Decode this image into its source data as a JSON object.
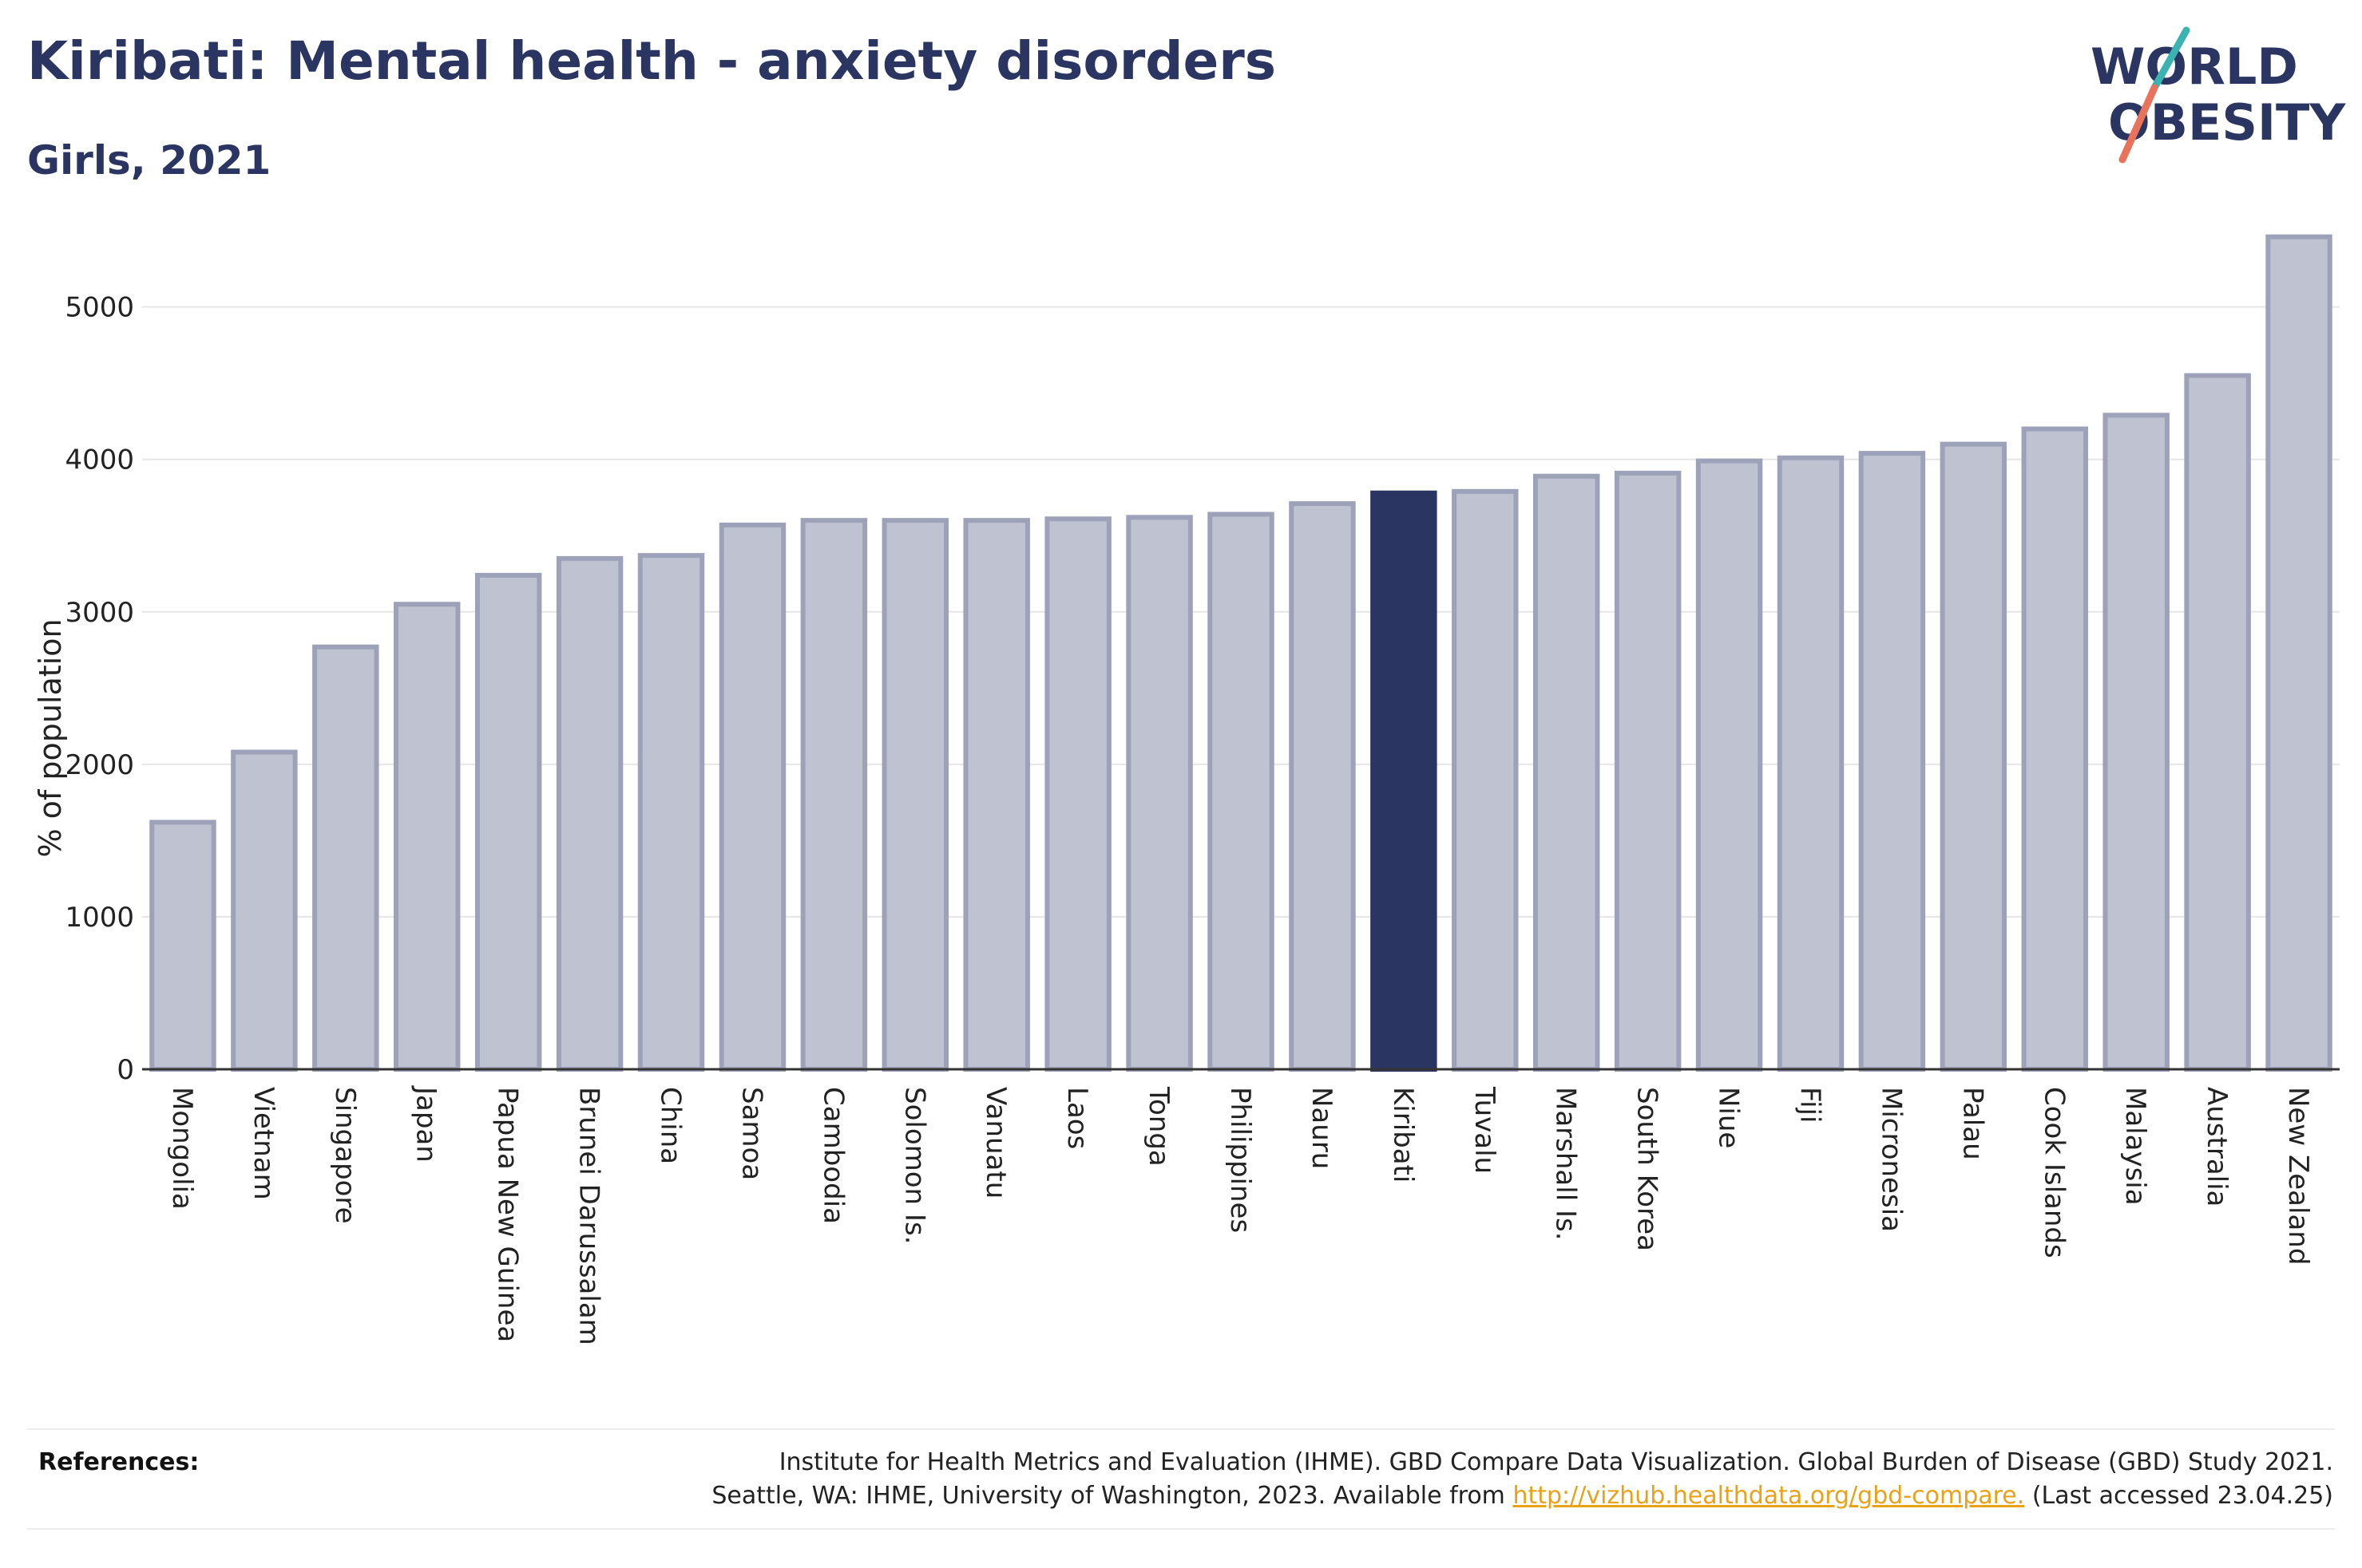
{
  "header": {
    "title": "Kiribati: Mental health - anxiety disorders",
    "subtitle": "Girls, 2021"
  },
  "logo": {
    "line1": "WORLD",
    "line2": "OBESITY",
    "colors": {
      "text": "#2b3562",
      "slash_teal": "#3bb3b0",
      "slash_coral": "#e8735a"
    }
  },
  "chart_data": {
    "type": "bar",
    "title": "Kiribati: Mental health - anxiety disorders",
    "subtitle": "Girls, 2021",
    "xlabel": "",
    "ylabel": "% of population",
    "ylim": [
      0,
      5600
    ],
    "yticks": [
      0,
      1000,
      2000,
      3000,
      4000,
      5000
    ],
    "grid": true,
    "highlight": "Kiribati",
    "colors": {
      "bar": "#bfc2d0",
      "bar_border": "#9da2b8",
      "highlight": "#2b3562"
    },
    "categories": [
      "Mongolia",
      "Vietnam",
      "Singapore",
      "Japan",
      "Papua New Guinea",
      "Brunei Darussalam",
      "China",
      "Samoa",
      "Cambodia",
      "Solomon Is.",
      "Vanuatu",
      "Laos",
      "Tonga",
      "Philippines",
      "Nauru",
      "Kiribati",
      "Tuvalu",
      "Marshall Is.",
      "South Korea",
      "Niue",
      "Fiji",
      "Micronesia",
      "Palau",
      "Cook Islands",
      "Malaysia",
      "Australia",
      "New Zealand"
    ],
    "values": [
      1620,
      2080,
      2770,
      3050,
      3240,
      3350,
      3370,
      3570,
      3600,
      3600,
      3600,
      3610,
      3620,
      3640,
      3710,
      3780,
      3790,
      3890,
      3910,
      3990,
      4010,
      4040,
      4100,
      4200,
      4290,
      4550,
      5460
    ]
  },
  "references": {
    "label": "References:",
    "line1": "Institute for Health Metrics and Evaluation (IHME). GBD Compare Data Visualization. Global Burden of Disease (GBD) Study 2021.",
    "line2_pre": "Seattle, WA: IHME, University of Washington, 2023. Available from ",
    "link": "http://vizhub.healthdata.org/gbd-compare.",
    "line2_post": " (Last accessed 23.04.25)"
  }
}
